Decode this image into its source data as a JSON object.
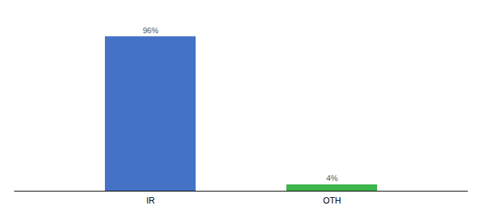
{
  "chart_data": {
    "type": "bar",
    "categories": [
      "IR",
      "OTH"
    ],
    "values": [
      96,
      4
    ],
    "value_labels": [
      "96%",
      "4%"
    ],
    "colors": [
      "#4472c4",
      "#3cb54a"
    ],
    "ylim": [
      0,
      108
    ],
    "data_labels": true,
    "tick_labels": "x"
  }
}
